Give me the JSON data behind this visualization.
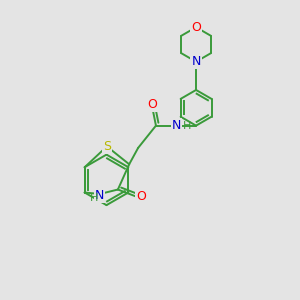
{
  "background_color": "#e4e4e4",
  "bond_color": "#3a9a3a",
  "atom_colors": {
    "O": "#ff0000",
    "N": "#0000cc",
    "S": "#b8b800",
    "H": "#3a9a3a",
    "C": "#3a9a3a"
  },
  "bond_width": 1.4,
  "font_size": 9,
  "figsize": [
    3.0,
    3.0
  ],
  "dpi": 100
}
